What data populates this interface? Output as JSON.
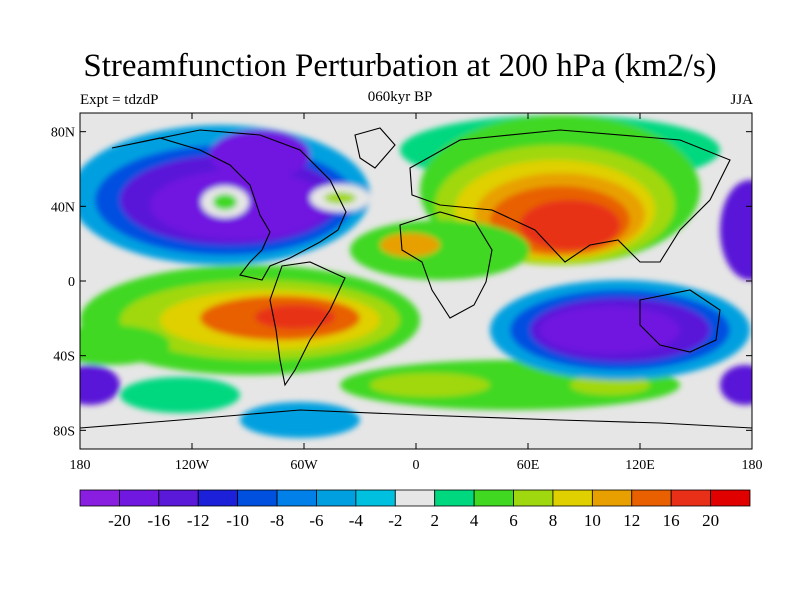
{
  "title": "Streamfunction Perturbation at 200 hPa (km2/s)",
  "experiment": "Expt = tdzdP",
  "period": "060kyr BP",
  "season": "JJA",
  "lat_labels": [
    "80N",
    "40N",
    "0",
    "40S",
    "80S"
  ],
  "lat_values": [
    80,
    40,
    0,
    -40,
    -80
  ],
  "lon_labels": [
    "180",
    "120W",
    "60W",
    "0",
    "60E",
    "120E",
    "180"
  ],
  "lon_values": [
    -180,
    -120,
    -60,
    0,
    60,
    120,
    180
  ],
  "colorbar": {
    "labels": [
      "-20",
      "-16",
      "-12",
      "-10",
      "-8",
      "-6",
      "-4",
      "-2",
      "2",
      "4",
      "6",
      "8",
      "10",
      "12",
      "16",
      "20"
    ],
    "colors": [
      "#8a1ee0",
      "#7018e0",
      "#5a18d8",
      "#1c20d8",
      "#0050e0",
      "#0080e8",
      "#00a0e0",
      "#00c0e0",
      "#e6e6e6",
      "#00d880",
      "#40d820",
      "#a0d810",
      "#e0d000",
      "#e8a000",
      "#e86000",
      "#e83018",
      "#e00000"
    ]
  }
}
